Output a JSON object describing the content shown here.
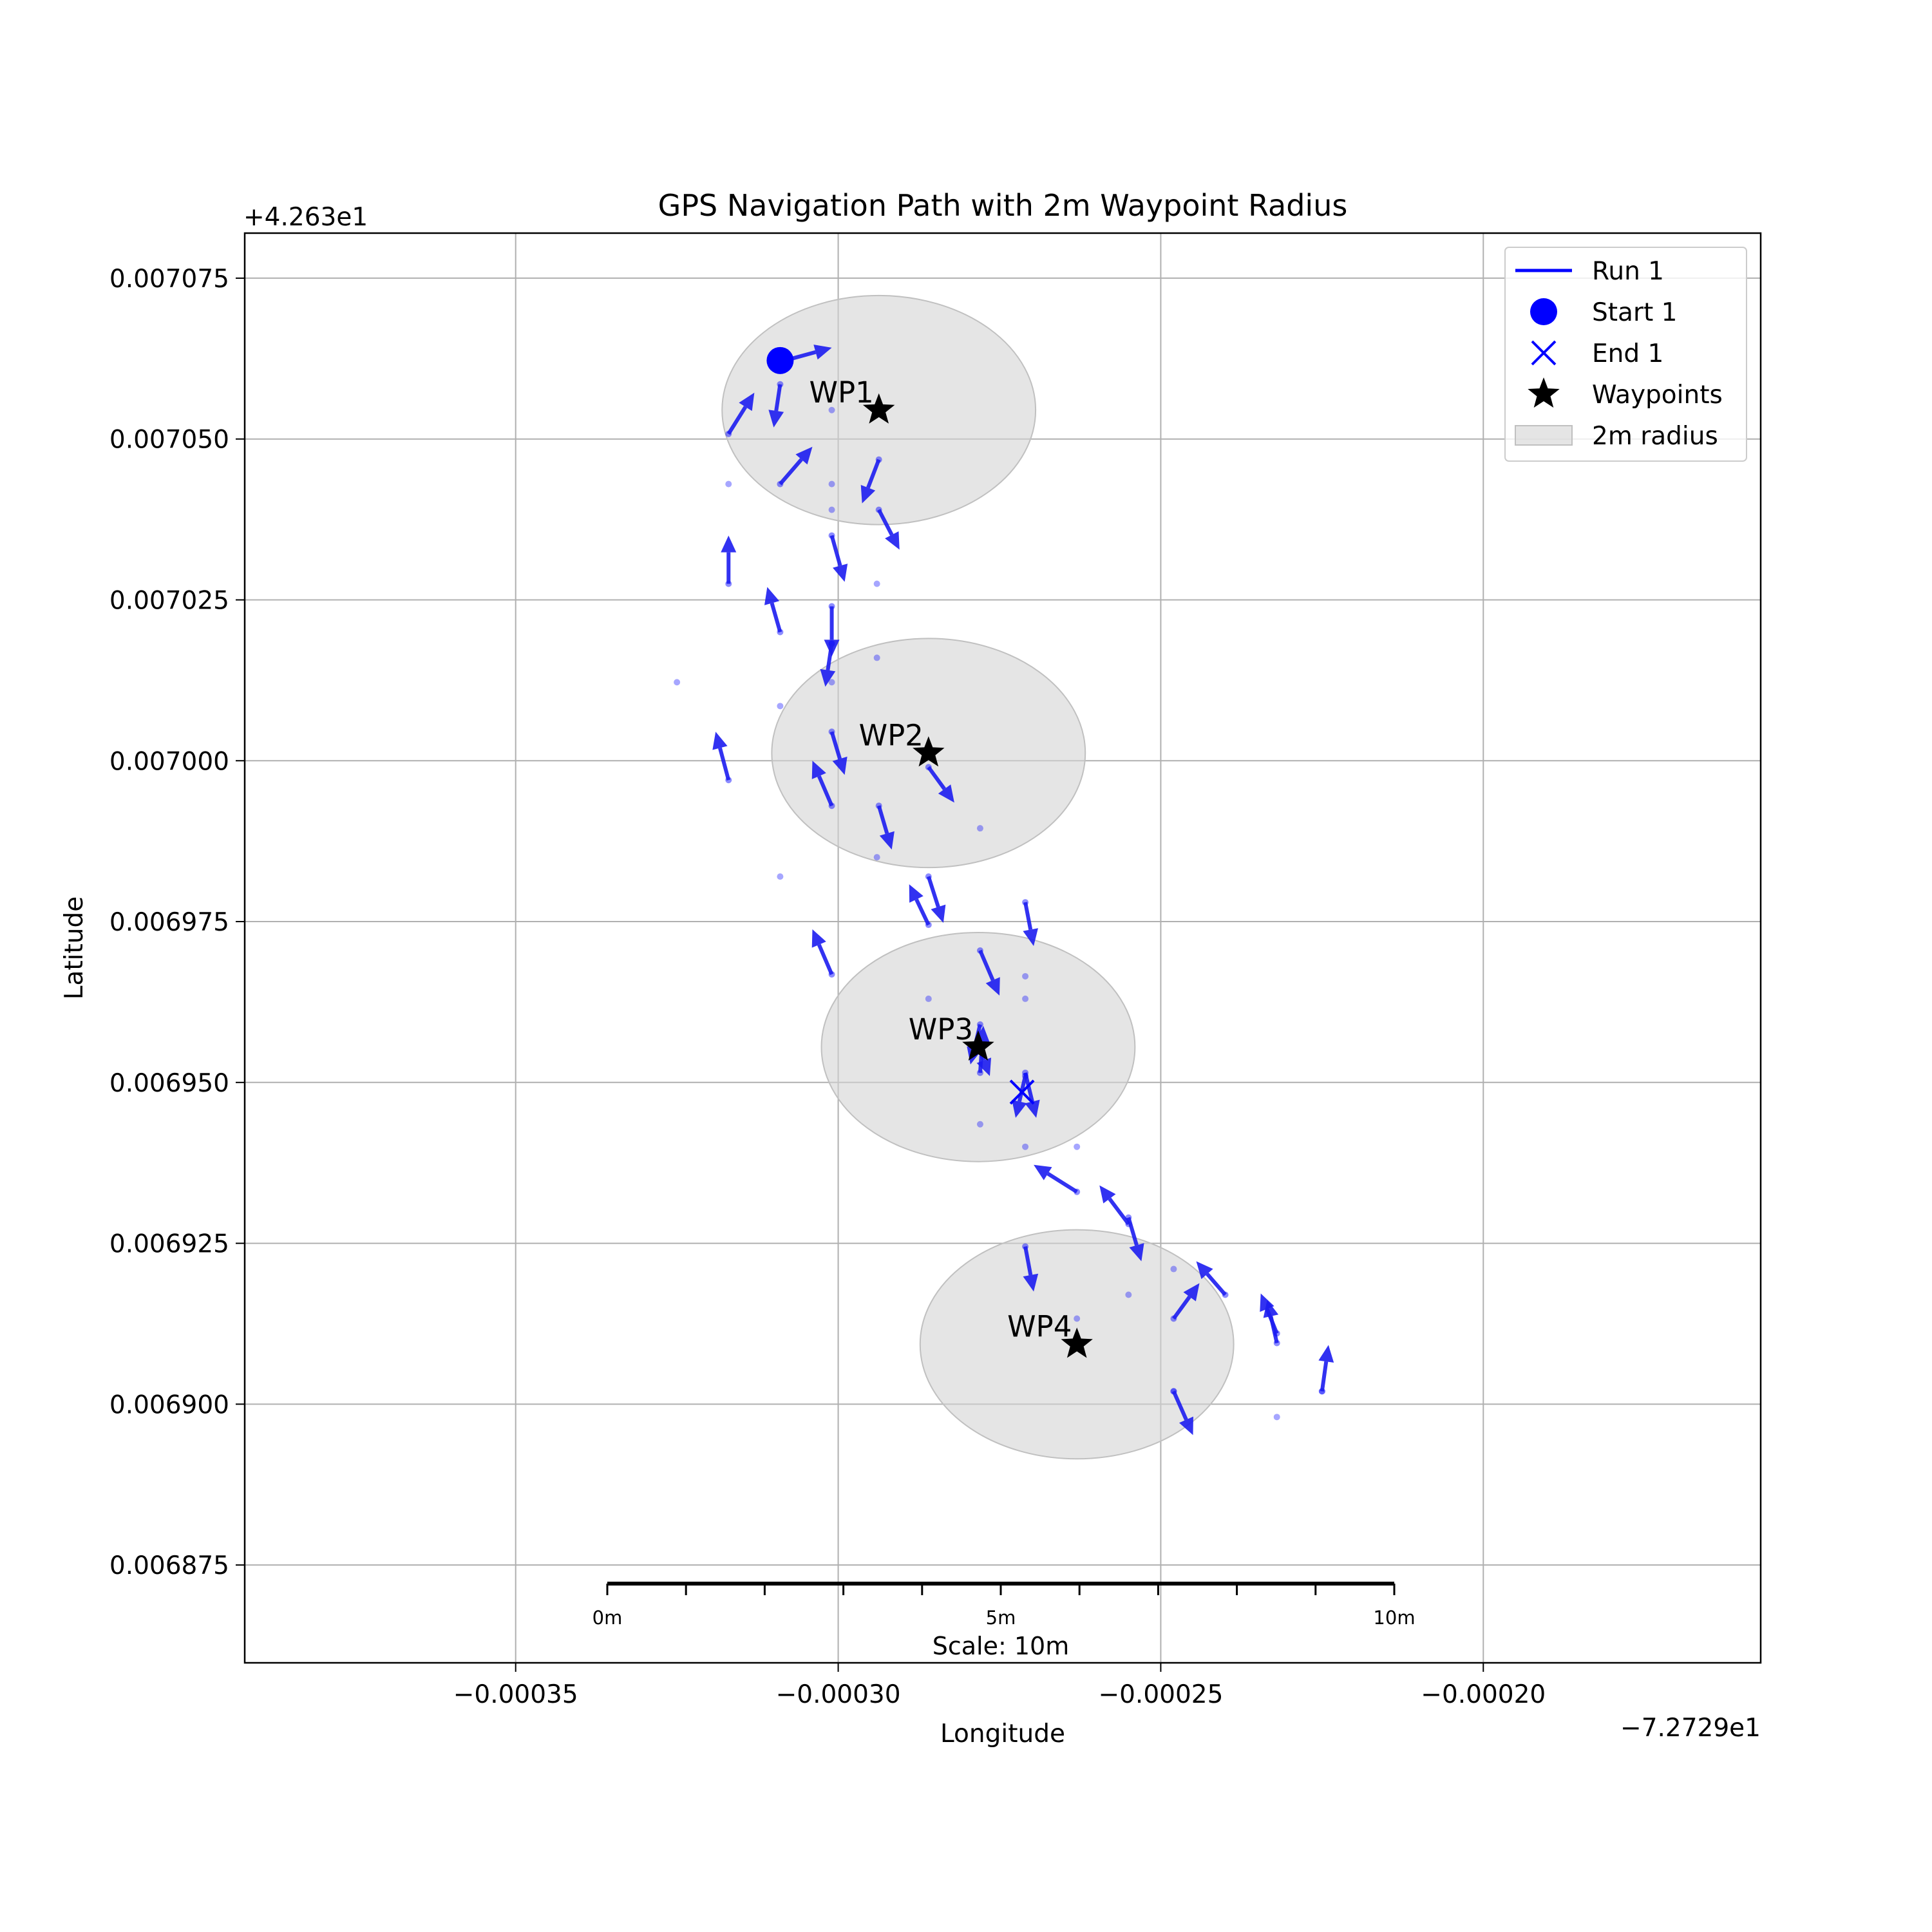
{
  "chart_data": {
    "type": "scatter",
    "title": "GPS Navigation Path with 2m Waypoint Radius",
    "xlabel": "Longitude",
    "ylabel": "Latitude",
    "x_offset_label": "−7.2729e1",
    "y_offset_label": "+4.263e1",
    "xlim": [
      -0.000392,
      -0.000157
    ],
    "ylim": [
      0.0068598,
      0.007082
    ],
    "x_ticks": [
      -0.00035,
      -0.0003,
      -0.00025,
      -0.0002
    ],
    "x_tick_labels": [
      "−0.00035",
      "−0.00030",
      "−0.00025",
      "−0.00020"
    ],
    "y_ticks": [
      0.006875,
      0.0069,
      0.006925,
      0.00695,
      0.006975,
      0.007,
      0.007025,
      0.00705,
      0.007075
    ],
    "y_tick_labels": [
      "0.006875",
      "0.006900",
      "0.006925",
      "0.006950",
      "0.006975",
      "0.007000",
      "0.007025",
      "0.007050",
      "0.007075"
    ],
    "grid": true,
    "legend_position": "top-right",
    "legend": [
      {
        "label": "Run 1",
        "marker": "line",
        "color": "#0000ff"
      },
      {
        "label": "Start 1",
        "marker": "circle",
        "color": "#0000ff"
      },
      {
        "label": "End 1",
        "marker": "x",
        "color": "#0000ff"
      },
      {
        "label": "Waypoints",
        "marker": "star",
        "color": "#000000"
      },
      {
        "label": "2m radius",
        "marker": "patch",
        "color": "#d3d3d3"
      }
    ],
    "colors": {
      "path": "#0000ff",
      "arrow": "#1c1cf0",
      "waypoint": "#000000",
      "radius_fill": "#d3d3d3"
    },
    "start": {
      "x": -0.000309,
      "y": 0.0070622
    },
    "end": {
      "x": -0.0002715,
      "y": 0.0069485
    },
    "waypoints": [
      {
        "label": "WP1",
        "x": -0.0002937,
        "y": 0.0070545,
        "radius_deg_x": 2.43e-05,
        "radius_deg_y": 1.78e-05
      },
      {
        "label": "WP2",
        "x": -0.000286,
        "y": 0.0070012,
        "radius_deg_x": 2.43e-05,
        "radius_deg_y": 1.78e-05
      },
      {
        "label": "WP3",
        "x": -0.0002783,
        "y": 0.0069555,
        "radius_deg_x": 2.43e-05,
        "radius_deg_y": 1.78e-05
      },
      {
        "label": "WP4",
        "x": -0.000263,
        "y": 0.0069093,
        "radius_deg_x": 2.43e-05,
        "radius_deg_y": 1.78e-05
      }
    ],
    "points": [
      [
        -0.000301,
        0.0070545
      ],
      [
        -0.000317,
        0.007043
      ],
      [
        -0.000301,
        0.007043
      ],
      [
        -0.000301,
        0.007039
      ],
      [
        -0.000294,
        0.0070275
      ],
      [
        -0.000294,
        0.007016
      ],
      [
        -0.000325,
        0.0070122
      ],
      [
        -0.000309,
        0.0070085
      ],
      [
        -0.000301,
        0.0070122
      ],
      [
        -0.000278,
        0.0069895
      ],
      [
        -0.000309,
        0.006982
      ],
      [
        -0.000286,
        0.006963
      ],
      [
        -0.000271,
        0.0069665
      ],
      [
        -0.000271,
        0.006963
      ],
      [
        -0.000278,
        0.0069435
      ],
      [
        -0.000263,
        0.00694
      ],
      [
        -0.000271,
        0.00694
      ],
      [
        -0.000255,
        0.006917
      ],
      [
        -0.000248,
        0.006921
      ],
      [
        -0.000263,
        0.0069133
      ],
      [
        -0.000232,
        0.006898
      ],
      [
        -0.000248,
        0.006902
      ],
      [
        -0.000225,
        0.006902
      ],
      [
        -0.000294,
        0.006985
      ]
    ],
    "arrows": [
      [
        -0.000309,
        0.007062,
        -0.000301,
        0.0070642
      ],
      [
        -0.000317,
        0.0070508,
        -0.000313,
        0.0070572
      ],
      [
        -0.000309,
        0.0070585,
        -0.00031,
        0.0070518
      ],
      [
        -0.000309,
        0.007043,
        -0.000304,
        0.0070488
      ],
      [
        -0.0002937,
        0.0070468,
        -0.0002963,
        0.00704
      ],
      [
        -0.0002937,
        0.007039,
        -0.0002905,
        0.0070328
      ],
      [
        -0.000317,
        0.0070275,
        -0.000317,
        0.007035
      ],
      [
        -0.000301,
        0.007035,
        -0.000299,
        0.0070278
      ],
      [
        -0.000309,
        0.00702,
        -0.000311,
        0.007027
      ],
      [
        -0.000301,
        0.007024,
        -0.000301,
        0.0070162
      ],
      [
        -0.000301,
        0.0070182,
        -0.000302,
        0.0070115
      ],
      [
        -0.000301,
        0.0070045,
        -0.000299,
        0.0069978
      ],
      [
        -0.000317,
        0.006997,
        -0.000319,
        0.0070045
      ],
      [
        -0.000301,
        0.006993,
        -0.000304,
        0.007
      ],
      [
        -0.000286,
        0.006999,
        -0.000282,
        0.0069935
      ],
      [
        -0.0002937,
        0.006993,
        -0.0002917,
        0.0069862
      ],
      [
        -0.000286,
        0.006982,
        -0.0002837,
        0.0069748
      ],
      [
        -0.000286,
        0.0069745,
        -0.000289,
        0.0069808
      ],
      [
        -0.000271,
        0.006978,
        -0.0002697,
        0.0069712
      ],
      [
        -0.000301,
        0.0069668,
        -0.000304,
        0.0069738
      ],
      [
        -0.000278,
        0.0069705,
        -0.000275,
        0.0069635
      ],
      [
        -0.000278,
        0.006959,
        -0.0002795,
        0.0069528
      ],
      [
        -0.000278,
        0.006955,
        -0.0002765,
        0.006951
      ],
      [
        -0.000278,
        0.0069515,
        -0.0002775,
        0.0069588
      ],
      [
        -0.000271,
        0.0069515,
        -0.0002693,
        0.0069445
      ],
      [
        -0.000271,
        0.006951,
        -0.0002725,
        0.0069445
      ],
      [
        -0.000263,
        0.006933,
        -0.0002697,
        0.0069372
      ],
      [
        -0.000255,
        0.006928,
        -0.0002595,
        0.006934
      ],
      [
        -0.000255,
        0.006929,
        -0.000253,
        0.0069222
      ],
      [
        -0.000271,
        0.0069245,
        -0.0002697,
        0.0069175
      ],
      [
        -0.000248,
        0.0069133,
        -0.000244,
        0.0069188
      ],
      [
        -0.00024,
        0.006917,
        -0.0002445,
        0.0069222
      ],
      [
        -0.000232,
        0.0069095,
        -0.0002335,
        0.0069162
      ],
      [
        -0.000232,
        0.006911,
        -0.0002345,
        0.0069172
      ],
      [
        -0.000248,
        0.006902,
        -0.000245,
        0.0068952
      ],
      [
        -0.000225,
        0.006902,
        -0.000224,
        0.0069092
      ]
    ],
    "scale_bar": {
      "title": "Scale: 10m",
      "labels": [
        "0m",
        "5m",
        "10m"
      ],
      "length_m": 10,
      "minor_ticks": 10
    }
  }
}
